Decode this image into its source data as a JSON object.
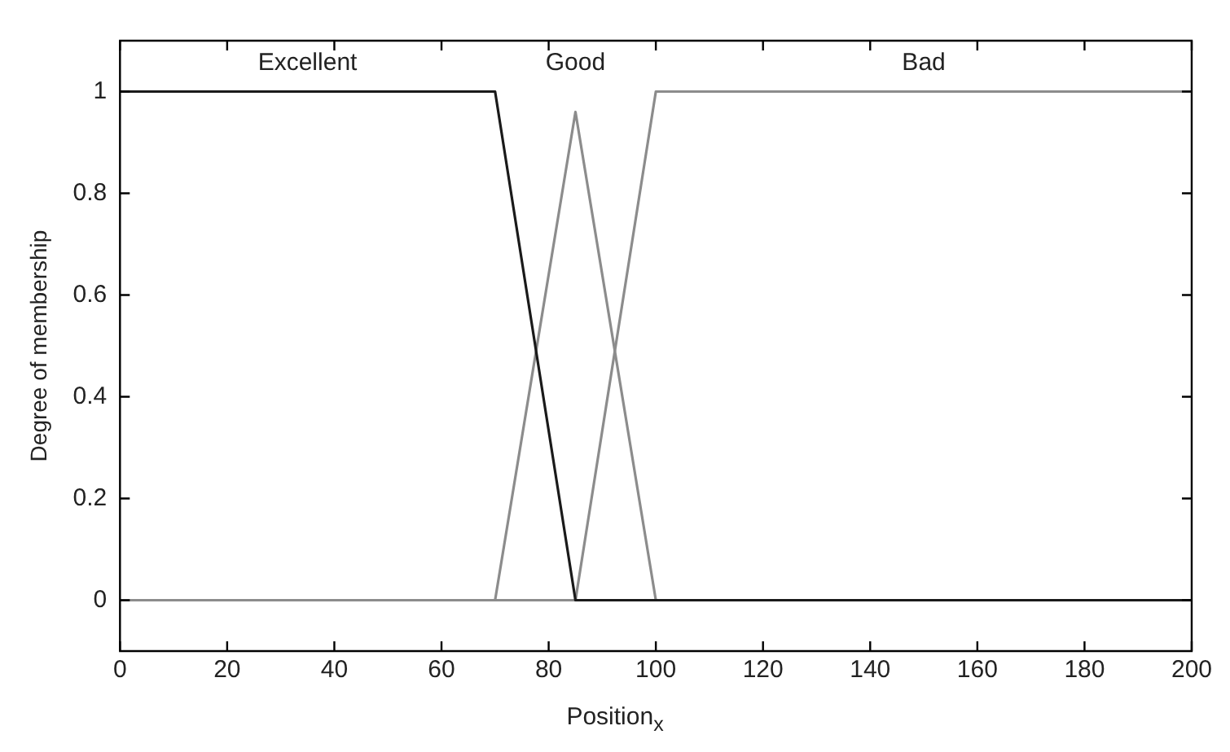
{
  "chart_data": {
    "type": "line",
    "xlabel": "Position$_{x}$",
    "ylabel": "Degree of membership",
    "series": [
      {
        "name": "Excellent",
        "color": "#1a1a1a",
        "x": [
          0,
          70,
          85,
          200
        ],
        "values": [
          1,
          1,
          0,
          0
        ]
      },
      {
        "name": "Good",
        "color": "#8c8c8c",
        "x": [
          0,
          70,
          85,
          100,
          200
        ],
        "values": [
          0,
          0,
          0.96,
          0,
          0
        ]
      },
      {
        "name": "Bad",
        "color": "#8c8c8c",
        "x": [
          0,
          85,
          100,
          200
        ],
        "values": [
          0,
          0,
          1,
          1
        ]
      }
    ],
    "xlim": [
      0,
      200
    ],
    "xticks": [
      0,
      20,
      40,
      60,
      80,
      100,
      120,
      140,
      160,
      180,
      200
    ],
    "ylim": [
      -0.1,
      1.1
    ],
    "yticks": [
      0,
      0.2,
      0.4,
      0.6,
      0.8,
      1
    ],
    "grid": false,
    "legend": false,
    "marker": "none",
    "line_style": "solid"
  }
}
